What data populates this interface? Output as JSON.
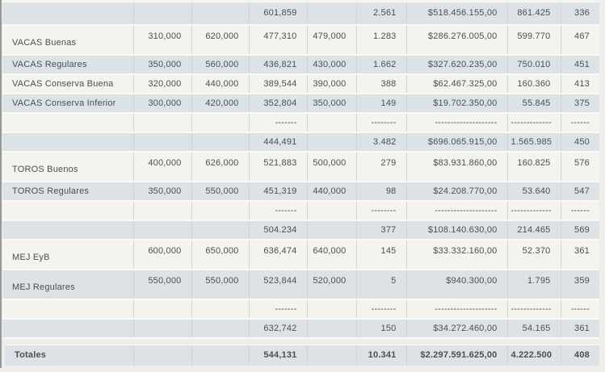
{
  "theme": {
    "bg_page": "#efede9",
    "bg_row_gray": "#dde2e6",
    "bg_row_cream": "#f4f3ee",
    "row_border": "#faf9f6",
    "col_divider": "#d2d4d3",
    "left_edge": "#939899",
    "text": "#4a4f54"
  },
  "table": {
    "rows": [
      {
        "kind": "subtotal",
        "category": "",
        "cells": [
          "",
          "",
          "601,859",
          "",
          "2.561",
          "$518.456.155,00",
          "861.425",
          "336"
        ],
        "bg": "gray",
        "tall": false
      },
      {
        "kind": "category",
        "category": "VACAS Buenas",
        "cells": [
          "310,000",
          "620,000",
          "477,310",
          "479,000",
          "1.283",
          "$286.276.005,00",
          "599.770",
          "467"
        ],
        "bg": "cream",
        "tall": true
      },
      {
        "kind": "category",
        "category": "VACAS Regulares",
        "cells": [
          "350,000",
          "560,000",
          "436,821",
          "430,000",
          "1.662",
          "$327.620.235,00",
          "750.010",
          "451"
        ],
        "bg": "gray",
        "tall": false
      },
      {
        "kind": "category",
        "category": "VACAS Conserva Buena",
        "cells": [
          "320,000",
          "440,000",
          "389,544",
          "390,000",
          "388",
          "$62.467.325,00",
          "160.360",
          "413"
        ],
        "bg": "cream",
        "tall": false
      },
      {
        "kind": "category",
        "category": "VACAS Conserva Inferior",
        "cells": [
          "300,000",
          "420,000",
          "352,804",
          "350,000",
          "149",
          "$19.702.350,00",
          "55.845",
          "375"
        ],
        "bg": "gray",
        "tall": false
      },
      {
        "kind": "separator",
        "category": "",
        "cells": [
          "",
          "",
          "-------",
          "",
          "--------",
          "--------------------",
          "-------------",
          "------"
        ],
        "bg": "cream",
        "tall": false
      },
      {
        "kind": "subtotal",
        "category": "",
        "cells": [
          "",
          "",
          "444,491",
          "",
          "3.482",
          "$696.065.915,00",
          "1.565.985",
          "450"
        ],
        "bg": "gray",
        "tall": false
      },
      {
        "kind": "category",
        "category": "TOROS Buenos",
        "cells": [
          "400,000",
          "626,000",
          "521,883",
          "500,000",
          "279",
          "$83.931.860,00",
          "160.825",
          "576"
        ],
        "bg": "cream",
        "tall": true
      },
      {
        "kind": "category",
        "category": "TOROS Regulares",
        "cells": [
          "350,000",
          "550,000",
          "451,319",
          "440,000",
          "98",
          "$24.208.770,00",
          "53.640",
          "547"
        ],
        "bg": "gray",
        "tall": false
      },
      {
        "kind": "separator",
        "category": "",
        "cells": [
          "",
          "",
          "-------",
          "",
          "--------",
          "--------------------",
          "-------------",
          "------"
        ],
        "bg": "cream",
        "tall": false
      },
      {
        "kind": "subtotal",
        "category": "",
        "cells": [
          "",
          "",
          "504.234",
          "",
          "377",
          "$108.140.630,00",
          "214.465",
          "569"
        ],
        "bg": "gray",
        "tall": false
      },
      {
        "kind": "category",
        "category": "MEJ EyB",
        "cells": [
          "600,000",
          "650,000",
          "636,474",
          "640,000",
          "145",
          "$33.332.160,00",
          "52.370",
          "361"
        ],
        "bg": "cream",
        "tall": true
      },
      {
        "kind": "category",
        "category": "MEJ Regulares",
        "cells": [
          "550,000",
          "550,000",
          "523,844",
          "520,000",
          "5",
          "$940.300,00",
          "1.795",
          "359"
        ],
        "bg": "gray",
        "tall": true
      },
      {
        "kind": "separator",
        "category": "",
        "cells": [
          "",
          "",
          "-------",
          "",
          "--------",
          "--------------------",
          "-------------",
          "------"
        ],
        "bg": "cream",
        "tall": false
      },
      {
        "kind": "subtotal",
        "category": "",
        "cells": [
          "",
          "",
          "632,742",
          "",
          "150",
          "$34.272.460,00",
          "54.165",
          "361"
        ],
        "bg": "gray",
        "tall": false
      }
    ],
    "totals": {
      "kind": "totals",
      "category": "Totales",
      "cells": [
        "",
        "",
        "544,131",
        "",
        "10.341",
        "$2.297.591.625,00",
        "4.222.500",
        "408"
      ],
      "bg": "gray",
      "tall": false
    }
  }
}
